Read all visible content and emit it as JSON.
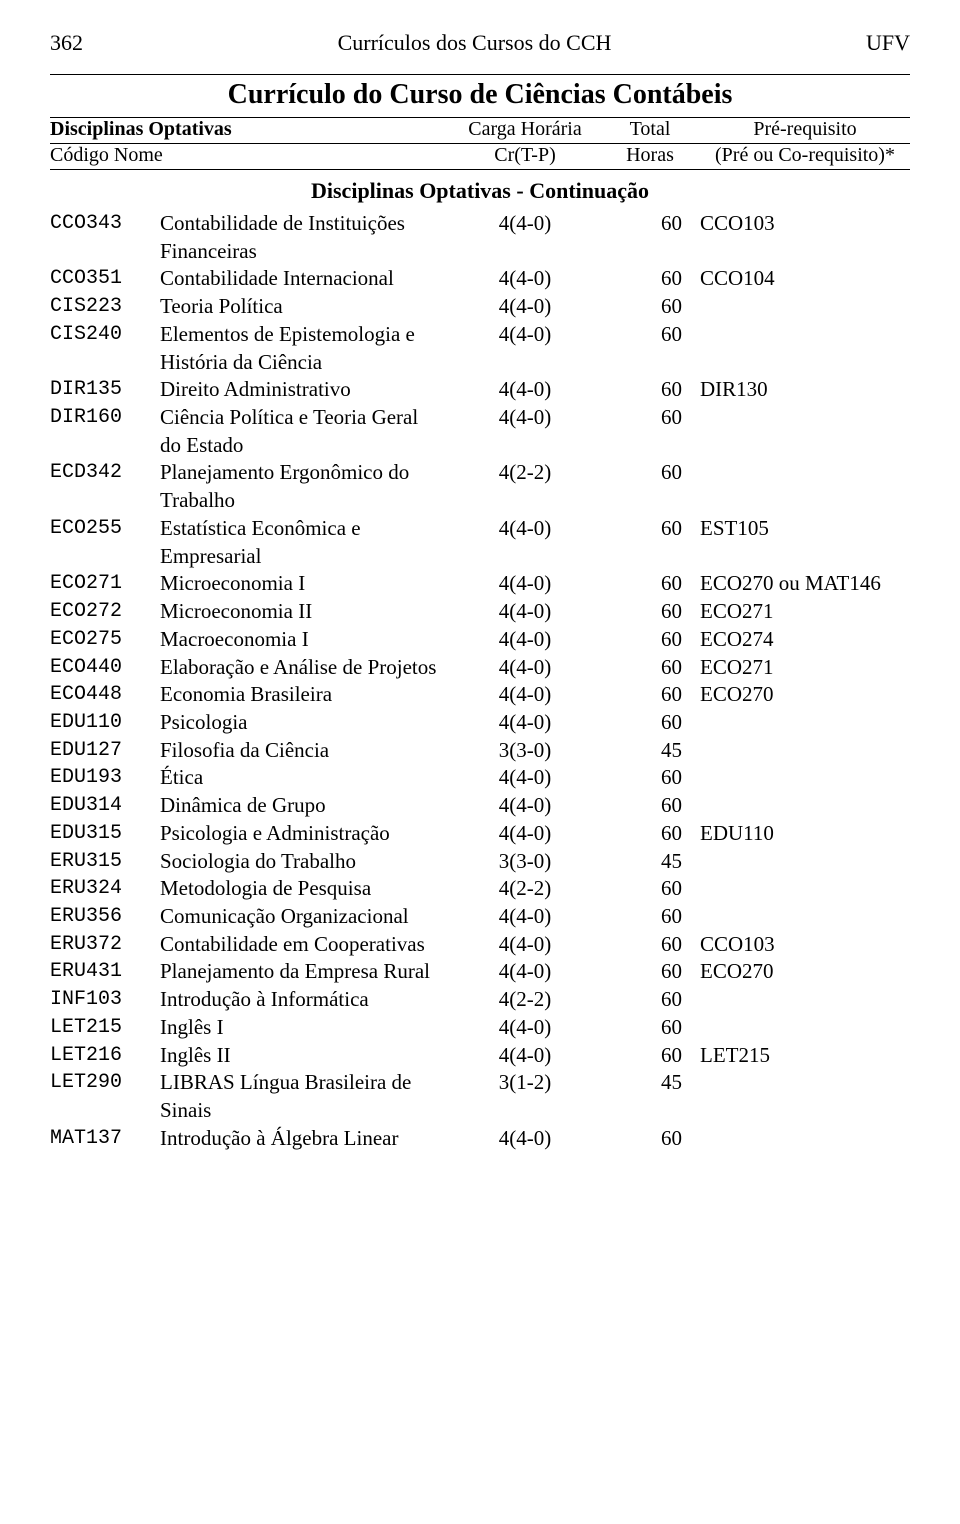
{
  "header": {
    "page_number": "362",
    "center_title": "Currículos dos Cursos do CCH",
    "right_label": "UFV"
  },
  "course_title": "Currículo do Curso de Ciências Contábeis",
  "subheader": {
    "left_line1": "Disciplinas Optativas",
    "left_line2": "Código  Nome",
    "mid1_line1": "Carga Horária",
    "mid1_line2": "Cr(T-P)",
    "mid2_line1": "Total",
    "mid2_line2": "Horas",
    "right_line1": "Pré-requisito",
    "right_line2": "(Pré ou Co-requisito)*"
  },
  "section_title": "Disciplinas Optativas - Continuação",
  "rows": [
    {
      "code": "CCO343",
      "name": "Contabilidade de Instituições Financeiras",
      "credits": "4(4-0)",
      "hours": "60",
      "prereq": "CCO103"
    },
    {
      "code": "CCO351",
      "name": "Contabilidade Internacional",
      "credits": "4(4-0)",
      "hours": "60",
      "prereq": "CCO104"
    },
    {
      "code": "CIS223",
      "name": "Teoria Política",
      "credits": "4(4-0)",
      "hours": "60",
      "prereq": ""
    },
    {
      "code": "CIS240",
      "name": "Elementos de Epistemologia e História da Ciência",
      "credits": "4(4-0)",
      "hours": "60",
      "prereq": ""
    },
    {
      "code": "DIR135",
      "name": "Direito Administrativo",
      "credits": "4(4-0)",
      "hours": "60",
      "prereq": "DIR130"
    },
    {
      "code": "DIR160",
      "name": "Ciência Política e Teoria Geral do Estado",
      "credits": "4(4-0)",
      "hours": "60",
      "prereq": ""
    },
    {
      "code": "ECD342",
      "name": "Planejamento Ergonômico do Trabalho",
      "credits": "4(2-2)",
      "hours": "60",
      "prereq": ""
    },
    {
      "code": "ECO255",
      "name": "Estatística Econômica e Empresarial",
      "credits": "4(4-0)",
      "hours": "60",
      "prereq": "EST105"
    },
    {
      "code": "ECO271",
      "name": "Microeconomia I",
      "credits": "4(4-0)",
      "hours": "60",
      "prereq": "ECO270 ou MAT146"
    },
    {
      "code": "ECO272",
      "name": "Microeconomia II",
      "credits": "4(4-0)",
      "hours": "60",
      "prereq": "ECO271"
    },
    {
      "code": "ECO275",
      "name": "Macroeconomia I",
      "credits": "4(4-0)",
      "hours": "60",
      "prereq": "ECO274"
    },
    {
      "code": "ECO440",
      "name": "Elaboração e Análise de Projetos",
      "credits": "4(4-0)",
      "hours": "60",
      "prereq": "ECO271"
    },
    {
      "code": "ECO448",
      "name": "Economia Brasileira",
      "credits": "4(4-0)",
      "hours": "60",
      "prereq": "ECO270"
    },
    {
      "code": "EDU110",
      "name": "Psicologia",
      "credits": "4(4-0)",
      "hours": "60",
      "prereq": ""
    },
    {
      "code": "EDU127",
      "name": "Filosofia da Ciência",
      "credits": "3(3-0)",
      "hours": "45",
      "prereq": ""
    },
    {
      "code": "EDU193",
      "name": "Ética",
      "credits": "4(4-0)",
      "hours": "60",
      "prereq": ""
    },
    {
      "code": "EDU314",
      "name": "Dinâmica de Grupo",
      "credits": "4(4-0)",
      "hours": "60",
      "prereq": ""
    },
    {
      "code": "EDU315",
      "name": "Psicologia e Administração",
      "credits": "4(4-0)",
      "hours": "60",
      "prereq": "EDU110"
    },
    {
      "code": "ERU315",
      "name": "Sociologia do Trabalho",
      "credits": "3(3-0)",
      "hours": "45",
      "prereq": ""
    },
    {
      "code": "ERU324",
      "name": "Metodologia de Pesquisa",
      "credits": "4(2-2)",
      "hours": "60",
      "prereq": ""
    },
    {
      "code": "ERU356",
      "name": "Comunicação Organizacional",
      "credits": "4(4-0)",
      "hours": "60",
      "prereq": ""
    },
    {
      "code": "ERU372",
      "name": "Contabilidade em Cooperativas",
      "credits": "4(4-0)",
      "hours": "60",
      "prereq": "CCO103"
    },
    {
      "code": "ERU431",
      "name": "Planejamento da Empresa Rural",
      "credits": "4(4-0)",
      "hours": "60",
      "prereq": "ECO270"
    },
    {
      "code": "INF103",
      "name": "Introdução à Informática",
      "credits": "4(2-2)",
      "hours": "60",
      "prereq": ""
    },
    {
      "code": "LET215",
      "name": "Inglês I",
      "credits": "4(4-0)",
      "hours": "60",
      "prereq": ""
    },
    {
      "code": "LET216",
      "name": "Inglês II",
      "credits": "4(4-0)",
      "hours": "60",
      "prereq": "LET215"
    },
    {
      "code": "LET290",
      "name": "LIBRAS Língua Brasileira de Sinais",
      "credits": "3(1-2)",
      "hours": "45",
      "prereq": ""
    },
    {
      "code": "MAT137",
      "name": "Introdução à Álgebra Linear",
      "credits": "4(4-0)",
      "hours": "60",
      "prereq": ""
    }
  ]
}
